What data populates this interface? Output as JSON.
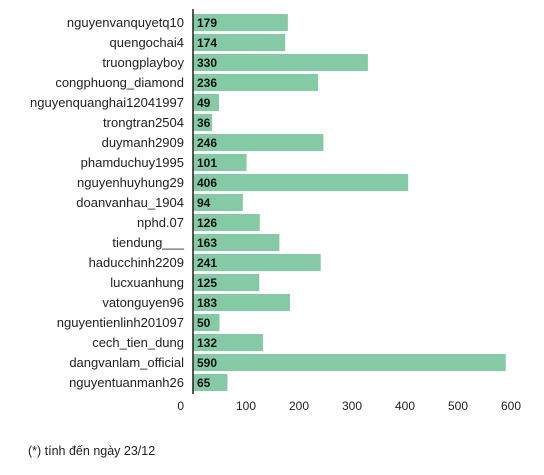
{
  "chart_data": {
    "type": "bar",
    "orientation": "horizontal",
    "categories": [
      "nguyenvanquyetq10",
      "quengochai4",
      "truongplayboy",
      "congphuong_diamond",
      "nguyenquanghai12041997",
      "trongtran2504",
      "duymanh2909",
      "phamduchuy1995",
      "nguyenhuyhung29",
      "doanvanhau_1904",
      "nphd.07",
      "tiendung___",
      "haducchinh2209",
      "lucxuanhung",
      "vatonguyen96",
      "nguyentienlinh201097",
      "cech_tien_dung",
      "dangvanlam_official",
      "nguyentuanmanh26"
    ],
    "values": [
      179,
      174,
      330,
      236,
      49,
      36,
      246,
      101,
      406,
      94,
      126,
      163,
      241,
      125,
      183,
      50,
      132,
      590,
      65
    ],
    "value_labels": [
      "179",
      "174",
      "330",
      "236",
      "49",
      "36",
      "246",
      "101",
      "406",
      "94",
      "126",
      "163",
      "241",
      "125",
      "183",
      "50",
      "132",
      "590",
      "65"
    ],
    "x_ticks": [
      0,
      100,
      200,
      300,
      400,
      500,
      600
    ],
    "x_tick_labels": [
      "0",
      "100",
      "200",
      "300",
      "400",
      "500",
      "600"
    ],
    "xlim": [
      0,
      600
    ],
    "bar_color": "#84cba5",
    "grid": false,
    "legend": "none"
  },
  "footnote": "(*) tính đến ngày 23/12"
}
